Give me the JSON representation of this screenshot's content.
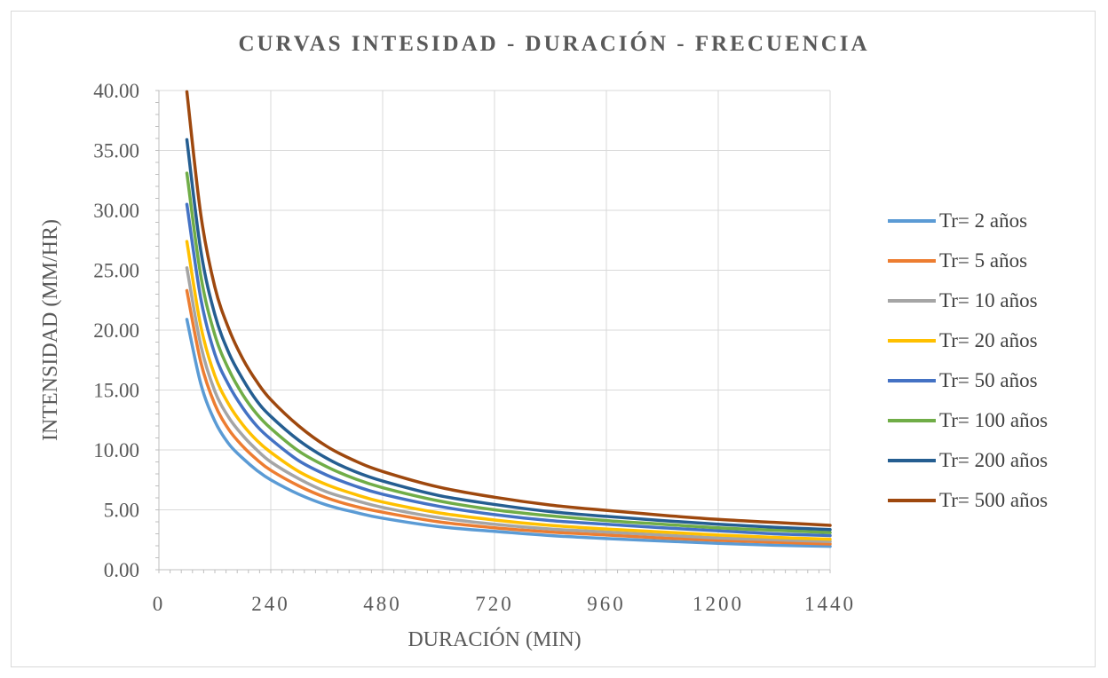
{
  "chart_data": {
    "type": "line",
    "title": "CURVAS INTESIDAD - DURACIÓN - FRECUENCIA",
    "xlabel": "DURACIÓN (MIN)",
    "ylabel": "INTENSIDAD (MM/HR)",
    "xlim": [
      0,
      1440
    ],
    "ylim": [
      0,
      40
    ],
    "x_ticks": [
      "0",
      "240",
      "480",
      "720",
      "960",
      "1200",
      "1440"
    ],
    "y_ticks": [
      "0.00",
      "5.00",
      "10.00",
      "15.00",
      "20.00",
      "25.00",
      "30.00",
      "35.00",
      "40.00"
    ],
    "grid": true,
    "legend_position": "right",
    "x": [
      60,
      90,
      120,
      150,
      180,
      210,
      240,
      300,
      360,
      420,
      480,
      600,
      720,
      840,
      960,
      1080,
      1200,
      1320,
      1440
    ],
    "series": [
      {
        "name": "Tr= 2 años",
        "color": "#5b9bd5",
        "values": [
          20.9,
          15.5,
          12.4,
          10.5,
          9.3,
          8.3,
          7.5,
          6.3,
          5.4,
          4.8,
          4.3,
          3.6,
          3.2,
          2.85,
          2.6,
          2.4,
          2.2,
          2.05,
          1.95
        ]
      },
      {
        "name": "Tr= 5 años",
        "color": "#ed7d31",
        "values": [
          23.3,
          17.3,
          13.8,
          11.7,
          10.3,
          9.2,
          8.3,
          7.0,
          6.0,
          5.3,
          4.8,
          4.0,
          3.5,
          3.15,
          2.9,
          2.65,
          2.45,
          2.3,
          2.15
        ]
      },
      {
        "name": "Tr= 10 años",
        "color": "#a5a5a5",
        "values": [
          25.2,
          18.7,
          14.9,
          12.7,
          11.2,
          10.0,
          9.0,
          7.6,
          6.5,
          5.8,
          5.2,
          4.35,
          3.8,
          3.4,
          3.15,
          2.9,
          2.65,
          2.5,
          2.35
        ]
      },
      {
        "name": "Tr= 20 años",
        "color": "#ffc000",
        "values": [
          27.4,
          20.3,
          16.2,
          13.8,
          12.1,
          10.8,
          9.8,
          8.2,
          7.1,
          6.3,
          5.65,
          4.75,
          4.15,
          3.7,
          3.4,
          3.15,
          2.9,
          2.7,
          2.55
        ]
      },
      {
        "name": "Tr= 50 años",
        "color": "#4472c4",
        "values": [
          30.5,
          22.6,
          18.0,
          15.4,
          13.5,
          12.0,
          10.9,
          9.1,
          7.9,
          7.0,
          6.3,
          5.3,
          4.6,
          4.1,
          3.8,
          3.5,
          3.25,
          3.0,
          2.85
        ]
      },
      {
        "name": "Tr= 100 años",
        "color": "#70ad47",
        "values": [
          33.1,
          24.5,
          19.6,
          16.7,
          14.6,
          13.0,
          11.8,
          9.9,
          8.6,
          7.6,
          6.85,
          5.75,
          5.0,
          4.5,
          4.1,
          3.8,
          3.5,
          3.3,
          3.1
        ]
      },
      {
        "name": "Tr= 200 años",
        "color": "#255e91",
        "values": [
          35.9,
          26.6,
          21.3,
          18.1,
          15.9,
          14.1,
          12.8,
          10.8,
          9.3,
          8.2,
          7.4,
          6.2,
          5.45,
          4.85,
          4.45,
          4.1,
          3.8,
          3.55,
          3.35
        ]
      },
      {
        "name": "Tr= 500 años",
        "color": "#9e480e",
        "values": [
          39.9,
          29.6,
          23.6,
          20.1,
          17.6,
          15.7,
          14.2,
          12.0,
          10.3,
          9.1,
          8.2,
          6.9,
          6.05,
          5.4,
          4.95,
          4.55,
          4.2,
          3.95,
          3.7
        ]
      }
    ]
  }
}
